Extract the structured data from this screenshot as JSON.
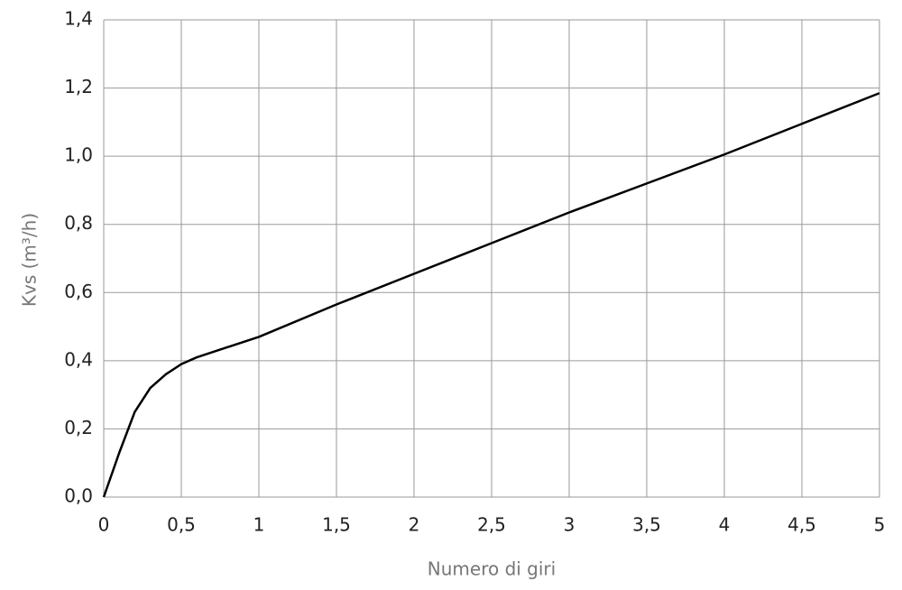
{
  "chart_data": {
    "type": "line",
    "x_label": "Numero di giri",
    "y_label": "Kvs (m³/h)",
    "x": [
      0,
      0.1,
      0.2,
      0.3,
      0.4,
      0.5,
      0.6,
      0.8,
      1,
      1.5,
      2,
      2.5,
      3,
      3.5,
      4,
      4.5,
      5
    ],
    "values": [
      0,
      0.13,
      0.25,
      0.32,
      0.36,
      0.39,
      0.41,
      0.44,
      0.47,
      0.565,
      0.655,
      0.745,
      0.835,
      0.92,
      1.005,
      1.095,
      1.185
    ],
    "color": "#000000",
    "xlim": [
      0,
      5
    ],
    "ylim": [
      0,
      1.4
    ],
    "xticks": [
      0,
      {
        "value": 0.5,
        "label": "0,5"
      },
      1,
      {
        "value": 1.5,
        "label": "1,5"
      },
      2,
      {
        "value": 2.5,
        "label": "2,5"
      },
      3,
      {
        "value": 3.5,
        "label": "3,5"
      },
      4,
      {
        "value": 4.5,
        "label": "4,5"
      },
      5
    ],
    "yticks": [
      {
        "value": 0,
        "label": "0,0"
      },
      {
        "value": 0.2,
        "label": "0,2"
      },
      {
        "value": 0.4,
        "label": "0,4"
      },
      {
        "value": 0.6,
        "label": "0,6"
      },
      {
        "value": 0.8,
        "label": "0,8"
      },
      {
        "value": 1.0,
        "label": "1,0"
      },
      {
        "value": 1.2,
        "label": "1,2"
      },
      {
        "value": 1.4,
        "label": "1,4"
      }
    ],
    "grid": true
  }
}
